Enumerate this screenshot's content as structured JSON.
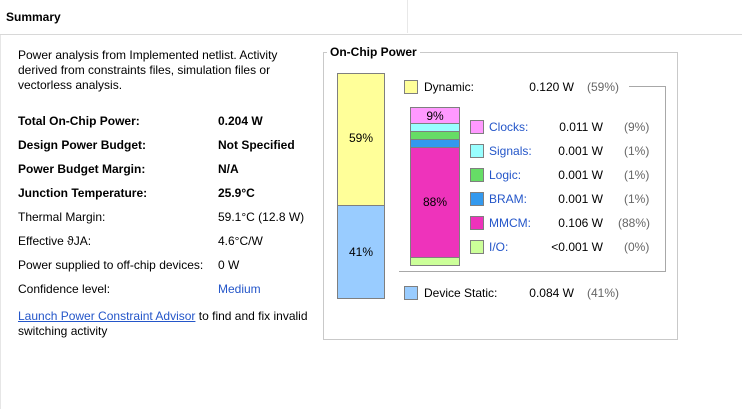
{
  "header": {
    "title": "Summary"
  },
  "description": "Power analysis from Implemented netlist. Activity derived from constraints files, simulation files or vectorless analysis.",
  "metrics": [
    {
      "label": "Total On-Chip Power:",
      "value": "0.204 W",
      "bold": true
    },
    {
      "label": "Design Power Budget:",
      "value": "Not Specified",
      "bold": true
    },
    {
      "label": "Power Budget Margin:",
      "value": "N/A",
      "bold": true
    },
    {
      "label": "Junction Temperature:",
      "value": "25.9°C",
      "bold": true
    },
    {
      "label": "Thermal Margin:",
      "value": "59.1°C (12.8 W)",
      "bold": false
    },
    {
      "label": "Effective ϑJA:",
      "value": "4.6°C/W",
      "bold": false
    },
    {
      "label": "Power supplied to off-chip devices:",
      "value": "0 W",
      "bold": false
    },
    {
      "label": "Confidence level:",
      "value": "Medium",
      "bold": false,
      "link": true
    }
  ],
  "footer": {
    "link_text": "Launch Power Constraint Advisor",
    "rest": " to find and fix invalid switching activity"
  },
  "on_chip_power": {
    "title": "On-Chip Power",
    "dynamic": {
      "label": "Dynamic:",
      "value": "0.120 W",
      "pct": "(59%)",
      "color": "#ffff99"
    },
    "device_static": {
      "label": "Device Static:",
      "value": "0.084 W",
      "pct": "(41%)",
      "color": "#99ccff"
    },
    "bar_labels": {
      "dynamic": "59%",
      "static": "41%"
    },
    "inner_bar_labels": {
      "clocks": "9%",
      "mmcm": "88%"
    },
    "breakdown": [
      {
        "label": "Clocks:",
        "value": "0.011 W",
        "pct": "(9%)",
        "color": "#ff99ff"
      },
      {
        "label": "Signals:",
        "value": "0.001 W",
        "pct": "(1%)",
        "color": "#99ffff"
      },
      {
        "label": "Logic:",
        "value": "0.001 W",
        "pct": "(1%)",
        "color": "#66dd66"
      },
      {
        "label": "BRAM:",
        "value": "0.001 W",
        "pct": "(1%)",
        "color": "#3399ee"
      },
      {
        "label": "MMCM:",
        "value": "0.106 W",
        "pct": "(88%)",
        "color": "#ee33bb"
      },
      {
        "label": "I/O:",
        "value": "<0.001 W",
        "pct": "(0%)",
        "color": "#ccff99"
      }
    ]
  }
}
